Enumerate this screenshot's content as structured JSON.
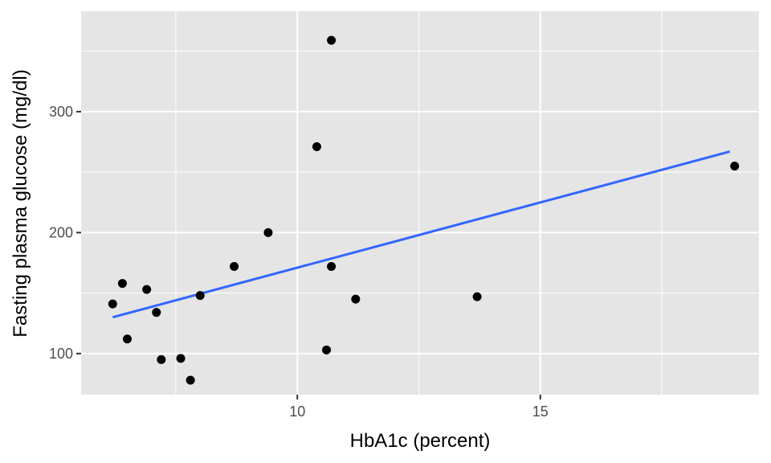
{
  "chart_data": {
    "type": "scatter",
    "title": "",
    "xlabel": "HbA1c (percent)",
    "ylabel": "Fasting plasma glucose (mg/dl)",
    "xlim": [
      5.55,
      19.5
    ],
    "ylim": [
      66,
      383
    ],
    "x_ticks": [
      10,
      15
    ],
    "x_tick_labels": [
      "10",
      "15"
    ],
    "x_minor_ticks": [
      7.5,
      12.5,
      17.5
    ],
    "y_ticks": [
      100,
      200,
      300
    ],
    "y_tick_labels": [
      "100",
      "200",
      "300"
    ],
    "y_minor_ticks": [
      150,
      250,
      350
    ],
    "grid": true,
    "legend": "none",
    "colors": {
      "panel": "#e5e5e5",
      "grid": "#ffffff",
      "points": "#000000",
      "fit_line": "#3366ff"
    },
    "points": [
      {
        "x": 6.2,
        "y": 141
      },
      {
        "x": 6.4,
        "y": 158
      },
      {
        "x": 6.5,
        "y": 112
      },
      {
        "x": 6.9,
        "y": 153
      },
      {
        "x": 7.1,
        "y": 134
      },
      {
        "x": 7.2,
        "y": 95
      },
      {
        "x": 7.6,
        "y": 96
      },
      {
        "x": 7.8,
        "y": 78
      },
      {
        "x": 8.0,
        "y": 148
      },
      {
        "x": 8.7,
        "y": 172
      },
      {
        "x": 9.4,
        "y": 200
      },
      {
        "x": 10.4,
        "y": 271
      },
      {
        "x": 10.6,
        "y": 103
      },
      {
        "x": 10.7,
        "y": 359
      },
      {
        "x": 10.7,
        "y": 172
      },
      {
        "x": 11.2,
        "y": 145
      },
      {
        "x": 13.7,
        "y": 147
      },
      {
        "x": 19.0,
        "y": 255
      }
    ],
    "fit_line": {
      "x": [
        6.2,
        18.9
      ],
      "y": [
        130,
        267
      ]
    }
  }
}
